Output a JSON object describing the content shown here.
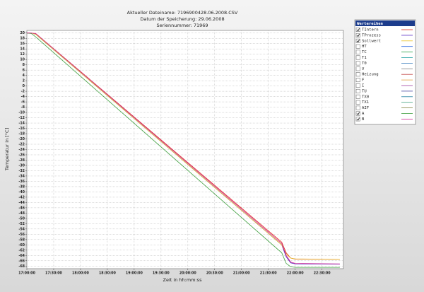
{
  "chart_data": {
    "type": "line",
    "title": "Aktueller Dateiname: 7196900428.06.2008.CSV",
    "subtitle": [
      "Datum der Speicherung: 29.06.2008",
      "Seriennummer: 71969"
    ],
    "x_label": "Zeit in hh:mm:ss",
    "y_label": "Temperatur in [°C]",
    "x": [
      "17:00:00",
      "17:05:00",
      "17:10:00",
      "21:45:00",
      "21:50:00",
      "21:55:00",
      "22:00:00",
      "22:50:00"
    ],
    "xlim": [
      "17:00:00",
      "22:54:00"
    ],
    "xticks": [
      "17:00:00",
      "17:30:00",
      "18:00:00",
      "18:30:00",
      "19:00:00",
      "19:30:00",
      "20:00:00",
      "20:30:00",
      "21:00:00",
      "21:30:00",
      "22:00:00",
      "22:30:00"
    ],
    "ylim": [
      -69,
      21
    ],
    "yticks": [
      20,
      18,
      16,
      14,
      12,
      10,
      8,
      6,
      4,
      2,
      0,
      -2,
      -4,
      -6,
      -8,
      -10,
      -12,
      -14,
      -16,
      -18,
      -20,
      -22,
      -24,
      -26,
      -28,
      -30,
      -32,
      -34,
      -36,
      -38,
      -40,
      -42,
      -44,
      -46,
      -48,
      -50,
      -52,
      -54,
      -56,
      -58,
      -60,
      -62,
      -64,
      -66,
      -68
    ],
    "grid": true,
    "legend_title": "Wertereihen",
    "series": [
      {
        "name": "TIntern",
        "color": "#e03020",
        "checked": true,
        "values": [
          20,
          20,
          19.8,
          -59,
          -63,
          -65,
          -65.4,
          -65.5
        ]
      },
      {
        "name": "TProzess",
        "color": "#5020c0",
        "checked": true,
        "values": [
          20,
          20,
          19.5,
          -60,
          -64.5,
          -66.8,
          -67.2,
          -67.3
        ]
      },
      {
        "name": "Sollwert",
        "color": "#e8c020",
        "checked": true,
        "values": [
          20,
          20,
          19.5,
          -60,
          -63.5,
          -65,
          -65.3,
          -65.5
        ]
      },
      {
        "name": "HT",
        "color": "#2060e0",
        "checked": false
      },
      {
        "name": "TC",
        "color": "#20a040",
        "checked": false
      },
      {
        "name": "T1",
        "color": "#20a0a0",
        "checked": false
      },
      {
        "name": "T0",
        "color": "#4080c0",
        "checked": false
      },
      {
        "name": "V",
        "color": "#808080",
        "checked": false
      },
      {
        "name": "Heizung",
        "color": "#c04040",
        "checked": false
      },
      {
        "name": "F",
        "color": "#e0a040",
        "checked": false
      },
      {
        "name": "I",
        "color": "#a040a0",
        "checked": false
      },
      {
        "name": "TU",
        "color": "#4040a0",
        "checked": false
      },
      {
        "name": "TX0",
        "color": "#2080a0",
        "checked": false
      },
      {
        "name": "TX1",
        "color": "#40a080",
        "checked": false
      },
      {
        "name": "AIF",
        "color": "#808040",
        "checked": false
      },
      {
        "name": "A",
        "color": "#40a040",
        "checked": true,
        "values": [
          20,
          19.8,
          18.5,
          -63,
          -67,
          -68.3,
          -68.5,
          -68.5
        ]
      },
      {
        "name": "B",
        "color": "#d02090",
        "checked": true,
        "values": [
          20,
          20,
          19.8,
          -59.5,
          -64,
          -66.5,
          -67,
          -67.2
        ]
      }
    ]
  }
}
